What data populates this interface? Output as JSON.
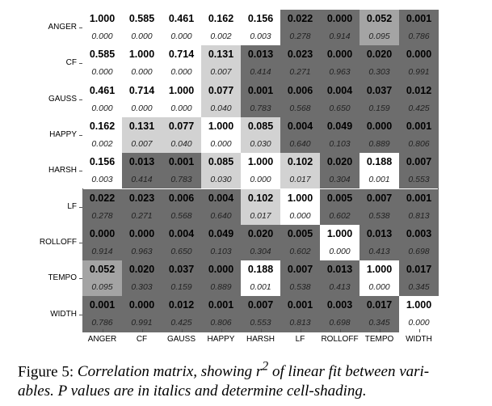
{
  "labels": [
    "ANGER",
    "CF",
    "GAUSS",
    "HAPPY",
    "HARSH",
    "LF",
    "ROLLOFF",
    "TEMPO",
    "WIDTH"
  ],
  "chart_data": {
    "type": "heatmap",
    "title": "Correlation matrix (r^2 of linear fit), P values in italics",
    "r2": [
      [
        "1.000",
        "0.585",
        "0.461",
        "0.162",
        "0.156",
        "0.022",
        "0.000",
        "0.052",
        "0.001"
      ],
      [
        "0.585",
        "1.000",
        "0.714",
        "0.131",
        "0.013",
        "0.023",
        "0.000",
        "0.020",
        "0.000"
      ],
      [
        "0.461",
        "0.714",
        "1.000",
        "0.077",
        "0.001",
        "0.006",
        "0.004",
        "0.037",
        "0.012"
      ],
      [
        "0.162",
        "0.131",
        "0.077",
        "1.000",
        "0.085",
        "0.004",
        "0.049",
        "0.000",
        "0.001"
      ],
      [
        "0.156",
        "0.013",
        "0.001",
        "0.085",
        "1.000",
        "0.102",
        "0.020",
        "0.188",
        "0.007"
      ],
      [
        "0.022",
        "0.023",
        "0.006",
        "0.004",
        "0.102",
        "1.000",
        "0.005",
        "0.007",
        "0.001"
      ],
      [
        "0.000",
        "0.000",
        "0.004",
        "0.049",
        "0.020",
        "0.005",
        "1.000",
        "0.013",
        "0.003"
      ],
      [
        "0.052",
        "0.020",
        "0.037",
        "0.000",
        "0.188",
        "0.007",
        "0.013",
        "1.000",
        "0.017"
      ],
      [
        "0.001",
        "0.000",
        "0.012",
        "0.001",
        "0.007",
        "0.001",
        "0.003",
        "0.017",
        "1.000"
      ]
    ],
    "p": [
      [
        "0.000",
        "0.000",
        "0.000",
        "0.002",
        "0.003",
        "0.278",
        "0.914",
        "0.095",
        "0.786"
      ],
      [
        "0.000",
        "0.000",
        "0.000",
        "0.007",
        "0.414",
        "0.271",
        "0.963",
        "0.303",
        "0.991"
      ],
      [
        "0.000",
        "0.000",
        "0.000",
        "0.040",
        "0.783",
        "0.568",
        "0.650",
        "0.159",
        "0.425"
      ],
      [
        "0.002",
        "0.007",
        "0.040",
        "0.000",
        "0.030",
        "0.640",
        "0.103",
        "0.889",
        "0.806"
      ],
      [
        "0.003",
        "0.414",
        "0.783",
        "0.030",
        "0.000",
        "0.017",
        "0.304",
        "0.001",
        "0.553"
      ],
      [
        "0.278",
        "0.271",
        "0.568",
        "0.640",
        "0.017",
        "0.000",
        "0.602",
        "0.538",
        "0.813"
      ],
      [
        "0.914",
        "0.963",
        "0.650",
        "0.103",
        "0.304",
        "0.602",
        "0.000",
        "0.413",
        "0.698"
      ],
      [
        "0.095",
        "0.303",
        "0.159",
        "0.889",
        "0.001",
        "0.538",
        "0.413",
        "0.000",
        "0.345"
      ],
      [
        "0.786",
        "0.991",
        "0.425",
        "0.806",
        "0.553",
        "0.813",
        "0.698",
        "0.345",
        "0.000"
      ]
    ],
    "shading_colors": {
      "white": "#ffffff",
      "light": "#d2d2d2",
      "medium": "#a4a4a4",
      "dark": "#6d6d6d"
    }
  },
  "caption": {
    "prefix": "Figure 5: ",
    "text1": "Correlation matrix, showing r",
    "sup": "2",
    "text2": " of linear fit between vari-",
    "line2": "ables. P values are in italics and determine cell-shading."
  }
}
